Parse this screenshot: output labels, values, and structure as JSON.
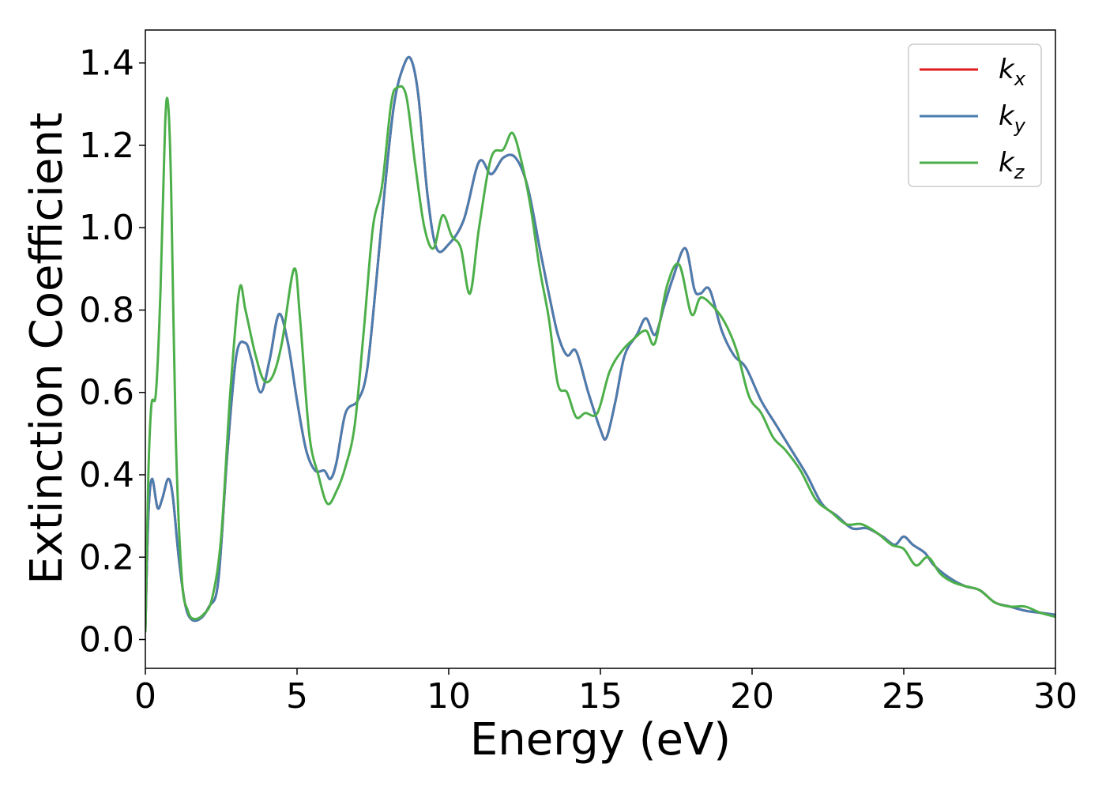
{
  "chart_data": {
    "type": "line",
    "xlabel": "Energy (eV)",
    "ylabel": "Extinction Coefficient",
    "xlim": [
      0,
      30
    ],
    "ylim": [
      -0.07,
      1.48
    ],
    "xticks": [
      0,
      5,
      10,
      15,
      20,
      25,
      30
    ],
    "xtick_labels": [
      "0",
      "5",
      "10",
      "15",
      "20",
      "25",
      "30"
    ],
    "yticks": [
      0.0,
      0.2,
      0.4,
      0.6,
      0.8,
      1.0,
      1.2,
      1.4
    ],
    "ytick_labels": [
      "0.0",
      "0.2",
      "0.4",
      "0.6",
      "0.8",
      "1.0",
      "1.2",
      "1.4"
    ],
    "grid": false,
    "legend_position": "top-right",
    "series": [
      {
        "name": "k_x",
        "label_base": "k",
        "label_sub": "x",
        "color": "#e41a1c",
        "x": [
          0.0,
          0.1,
          0.22,
          0.4,
          0.55,
          0.75,
          0.9,
          1.1,
          1.3,
          1.5,
          1.8,
          2.1,
          2.4,
          2.7,
          3.0,
          3.3,
          3.5,
          3.8,
          4.1,
          4.4,
          4.7,
          5.0,
          5.3,
          5.6,
          5.9,
          6.1,
          6.3,
          6.6,
          7.0,
          7.3,
          7.6,
          7.9,
          8.2,
          8.5,
          8.75,
          9.0,
          9.3,
          9.6,
          10.0,
          10.5,
          11.0,
          11.4,
          11.8,
          12.2,
          12.6,
          13.0,
          13.3,
          13.6,
          13.9,
          14.2,
          14.6,
          15.0,
          15.2,
          15.5,
          15.8,
          16.2,
          16.5,
          16.8,
          17.1,
          17.4,
          17.8,
          18.1,
          18.3,
          18.6,
          19.0,
          19.4,
          19.8,
          20.3,
          20.8,
          21.3,
          21.8,
          22.3,
          22.8,
          23.3,
          23.8,
          24.3,
          24.7,
          25.0,
          25.3,
          25.7,
          26.0,
          26.5,
          27.0,
          27.5,
          28.0,
          28.5,
          29.0,
          29.5,
          30.0
        ],
        "values": [
          0.02,
          0.3,
          0.39,
          0.32,
          0.34,
          0.39,
          0.35,
          0.2,
          0.09,
          0.05,
          0.05,
          0.08,
          0.14,
          0.45,
          0.69,
          0.72,
          0.68,
          0.6,
          0.68,
          0.79,
          0.72,
          0.58,
          0.46,
          0.41,
          0.41,
          0.39,
          0.43,
          0.55,
          0.58,
          0.65,
          0.86,
          1.1,
          1.3,
          1.39,
          1.41,
          1.32,
          1.08,
          0.95,
          0.96,
          1.02,
          1.16,
          1.13,
          1.17,
          1.17,
          1.1,
          0.95,
          0.84,
          0.74,
          0.69,
          0.7,
          0.6,
          0.51,
          0.49,
          0.58,
          0.69,
          0.74,
          0.78,
          0.74,
          0.81,
          0.88,
          0.95,
          0.85,
          0.84,
          0.85,
          0.75,
          0.69,
          0.66,
          0.58,
          0.52,
          0.46,
          0.4,
          0.33,
          0.3,
          0.27,
          0.27,
          0.25,
          0.23,
          0.25,
          0.23,
          0.21,
          0.18,
          0.15,
          0.13,
          0.12,
          0.09,
          0.08,
          0.07,
          0.065,
          0.06
        ]
      },
      {
        "name": "k_y",
        "label_base": "k",
        "label_sub": "y",
        "color": "#4a7db0",
        "x": [
          0.0,
          0.1,
          0.22,
          0.4,
          0.55,
          0.75,
          0.9,
          1.1,
          1.3,
          1.5,
          1.8,
          2.1,
          2.4,
          2.7,
          3.0,
          3.3,
          3.5,
          3.8,
          4.1,
          4.4,
          4.7,
          5.0,
          5.3,
          5.6,
          5.9,
          6.1,
          6.3,
          6.6,
          7.0,
          7.3,
          7.6,
          7.9,
          8.2,
          8.5,
          8.75,
          9.0,
          9.3,
          9.6,
          10.0,
          10.5,
          11.0,
          11.4,
          11.8,
          12.2,
          12.6,
          13.0,
          13.3,
          13.6,
          13.9,
          14.2,
          14.6,
          15.0,
          15.2,
          15.5,
          15.8,
          16.2,
          16.5,
          16.8,
          17.1,
          17.4,
          17.8,
          18.1,
          18.3,
          18.6,
          19.0,
          19.4,
          19.8,
          20.3,
          20.8,
          21.3,
          21.8,
          22.3,
          22.8,
          23.3,
          23.8,
          24.3,
          24.7,
          25.0,
          25.3,
          25.7,
          26.0,
          26.5,
          27.0,
          27.5,
          28.0,
          28.5,
          29.0,
          29.5,
          30.0
        ],
        "values": [
          0.02,
          0.3,
          0.39,
          0.32,
          0.34,
          0.39,
          0.35,
          0.2,
          0.09,
          0.05,
          0.05,
          0.08,
          0.14,
          0.45,
          0.69,
          0.72,
          0.68,
          0.6,
          0.68,
          0.79,
          0.72,
          0.58,
          0.46,
          0.41,
          0.41,
          0.39,
          0.43,
          0.55,
          0.58,
          0.65,
          0.86,
          1.1,
          1.3,
          1.39,
          1.41,
          1.32,
          1.08,
          0.95,
          0.96,
          1.02,
          1.16,
          1.13,
          1.17,
          1.17,
          1.1,
          0.95,
          0.84,
          0.74,
          0.69,
          0.7,
          0.6,
          0.51,
          0.49,
          0.58,
          0.69,
          0.74,
          0.78,
          0.74,
          0.81,
          0.88,
          0.95,
          0.85,
          0.84,
          0.85,
          0.75,
          0.69,
          0.66,
          0.58,
          0.52,
          0.46,
          0.4,
          0.33,
          0.3,
          0.27,
          0.27,
          0.25,
          0.23,
          0.25,
          0.23,
          0.21,
          0.18,
          0.15,
          0.13,
          0.12,
          0.09,
          0.08,
          0.07,
          0.065,
          0.06
        ]
      },
      {
        "name": "k_z",
        "label_base": "k",
        "label_sub": "z",
        "color": "#4daf4a",
        "x": [
          0.0,
          0.1,
          0.2,
          0.35,
          0.5,
          0.65,
          0.75,
          0.85,
          1.0,
          1.2,
          1.4,
          1.6,
          1.9,
          2.2,
          2.5,
          2.8,
          3.1,
          3.3,
          3.6,
          3.9,
          4.2,
          4.5,
          4.9,
          5.1,
          5.4,
          5.7,
          6.0,
          6.3,
          6.6,
          6.9,
          7.2,
          7.5,
          7.8,
          8.1,
          8.3,
          8.6,
          8.9,
          9.2,
          9.5,
          9.8,
          10.1,
          10.4,
          10.7,
          11.0,
          11.4,
          11.8,
          12.1,
          12.4,
          12.7,
          13.0,
          13.3,
          13.6,
          13.9,
          14.2,
          14.5,
          14.9,
          15.3,
          15.7,
          16.1,
          16.5,
          16.8,
          17.2,
          17.6,
          18.0,
          18.3,
          18.7,
          19.1,
          19.5,
          19.9,
          20.3,
          20.7,
          21.1,
          21.6,
          22.1,
          22.6,
          23.1,
          23.6,
          24.1,
          24.6,
          25.0,
          25.4,
          25.8,
          26.2,
          26.6,
          27.0,
          27.5,
          28.0,
          28.5,
          29.0,
          29.5,
          30.0
        ],
        "values": [
          0.02,
          0.4,
          0.57,
          0.6,
          0.85,
          1.25,
          1.3,
          1.1,
          0.5,
          0.15,
          0.07,
          0.05,
          0.06,
          0.1,
          0.25,
          0.6,
          0.85,
          0.8,
          0.7,
          0.63,
          0.64,
          0.72,
          0.9,
          0.78,
          0.5,
          0.4,
          0.33,
          0.36,
          0.42,
          0.52,
          0.75,
          1.0,
          1.1,
          1.3,
          1.34,
          1.32,
          1.15,
          1.0,
          0.95,
          1.03,
          0.98,
          0.95,
          0.84,
          1.0,
          1.17,
          1.19,
          1.23,
          1.16,
          1.05,
          0.9,
          0.78,
          0.62,
          0.6,
          0.54,
          0.55,
          0.55,
          0.65,
          0.7,
          0.73,
          0.75,
          0.72,
          0.86,
          0.91,
          0.79,
          0.83,
          0.81,
          0.77,
          0.7,
          0.59,
          0.55,
          0.49,
          0.46,
          0.41,
          0.34,
          0.31,
          0.28,
          0.28,
          0.26,
          0.23,
          0.22,
          0.18,
          0.2,
          0.16,
          0.14,
          0.13,
          0.12,
          0.09,
          0.08,
          0.08,
          0.065,
          0.055
        ]
      }
    ]
  }
}
